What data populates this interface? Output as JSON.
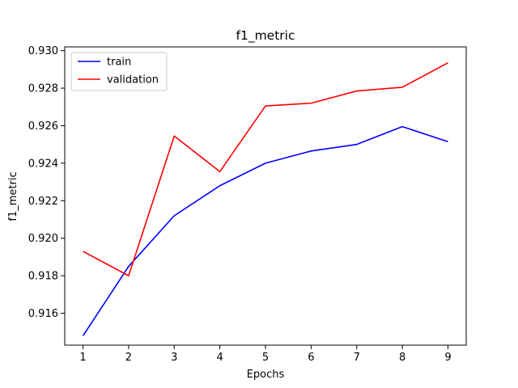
{
  "chart_data": {
    "type": "line",
    "title": "f1_metric",
    "xlabel": "Epochs",
    "ylabel": "f1_metric",
    "x": [
      1,
      2,
      3,
      4,
      5,
      6,
      7,
      8,
      9
    ],
    "xlim": [
      0.6,
      9.4
    ],
    "ylim": [
      0.9143,
      0.9302
    ],
    "xticks": [
      1,
      2,
      3,
      4,
      5,
      6,
      7,
      8,
      9
    ],
    "yticks": [
      0.916,
      0.918,
      0.92,
      0.922,
      0.924,
      0.926,
      0.928,
      0.93
    ],
    "ytick_labels": [
      "0.916",
      "0.918",
      "0.920",
      "0.922",
      "0.924",
      "0.926",
      "0.928",
      "0.930"
    ],
    "grid": false,
    "legend_position": "top-left",
    "series": [
      {
        "name": "train",
        "color": "#0000ff",
        "values": [
          0.9148,
          0.9185,
          0.9212,
          0.9228,
          0.924,
          0.92465,
          0.925,
          0.92595,
          0.92515
        ]
      },
      {
        "name": "validation",
        "color": "#ff0000",
        "values": [
          0.9193,
          0.918,
          0.92545,
          0.92355,
          0.92705,
          0.9272,
          0.92785,
          0.92805,
          0.92935
        ]
      }
    ]
  }
}
